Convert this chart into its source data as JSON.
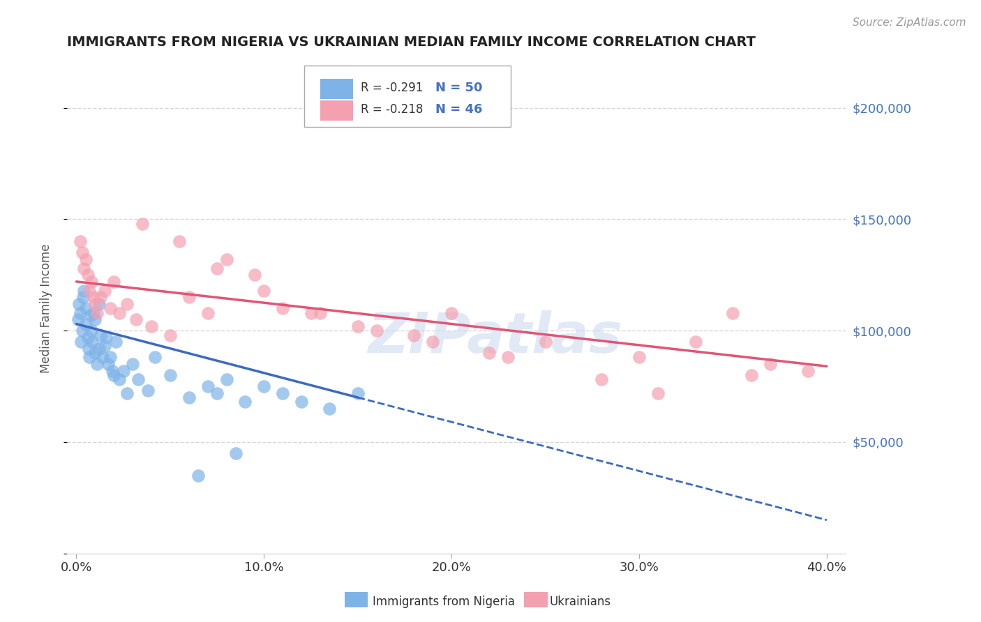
{
  "title": "IMMIGRANTS FROM NIGERIA VS UKRAINIAN MEDIAN FAMILY INCOME CORRELATION CHART",
  "source_text": "Source: ZipAtlas.com",
  "ylabel": "Median Family Income",
  "xlabel_ticks": [
    "0.0%",
    "10.0%",
    "20.0%",
    "30.0%",
    "40.0%"
  ],
  "xlabel_vals": [
    0.0,
    10.0,
    20.0,
    30.0,
    40.0
  ],
  "ylim": [
    0,
    220000
  ],
  "xlim": [
    -0.5,
    41
  ],
  "ytick_vals": [
    0,
    50000,
    100000,
    150000,
    200000
  ],
  "ytick_labels": [
    "",
    "$50,000",
    "$100,000",
    "$150,000",
    "$200,000"
  ],
  "nigeria_R": -0.291,
  "nigeria_N": 50,
  "ukraine_R": -0.218,
  "ukraine_N": 46,
  "nigeria_color": "#7EB3E8",
  "ukraine_color": "#F4A0B0",
  "nigeria_line_color": "#3B6BBF",
  "ukraine_line_color": "#E05575",
  "watermark": "ZIPatlas",
  "background_color": "#FFFFFF",
  "grid_color": "#CCCCCC",
  "title_color": "#222222",
  "axis_label_color": "#555555",
  "right_tick_color": "#4472C4",
  "nigeria_scatter_x": [
    0.1,
    0.15,
    0.2,
    0.25,
    0.3,
    0.35,
    0.4,
    0.5,
    0.5,
    0.6,
    0.65,
    0.7,
    0.75,
    0.8,
    0.85,
    0.9,
    1.0,
    1.0,
    1.1,
    1.2,
    1.2,
    1.3,
    1.4,
    1.5,
    1.6,
    1.7,
    1.8,
    1.9,
    2.0,
    2.1,
    2.3,
    2.5,
    2.7,
    3.0,
    3.3,
    3.8,
    4.2,
    5.0,
    6.0,
    7.0,
    7.5,
    8.0,
    9.0,
    10.0,
    11.0,
    12.0,
    13.5,
    15.0,
    8.5,
    6.5
  ],
  "nigeria_scatter_y": [
    105000,
    112000,
    108000,
    95000,
    100000,
    115000,
    118000,
    103000,
    110000,
    97000,
    92000,
    88000,
    107000,
    100000,
    95000,
    108000,
    90000,
    105000,
    85000,
    92000,
    112000,
    98000,
    88000,
    93000,
    97000,
    85000,
    88000,
    82000,
    80000,
    95000,
    78000,
    82000,
    72000,
    85000,
    78000,
    73000,
    88000,
    80000,
    70000,
    75000,
    72000,
    78000,
    68000,
    75000,
    72000,
    68000,
    65000,
    72000,
    45000,
    35000
  ],
  "ukraine_scatter_x": [
    0.2,
    0.3,
    0.4,
    0.5,
    0.6,
    0.7,
    0.8,
    0.9,
    1.0,
    1.1,
    1.3,
    1.5,
    1.8,
    2.0,
    2.3,
    2.7,
    3.2,
    4.0,
    5.0,
    6.0,
    7.0,
    8.0,
    9.5,
    11.0,
    13.0,
    15.0,
    18.0,
    20.0,
    22.0,
    25.0,
    28.0,
    30.0,
    33.0,
    35.0,
    37.0,
    39.0,
    3.5,
    5.5,
    7.5,
    10.0,
    12.5,
    16.0,
    19.0,
    23.0,
    31.0,
    36.0
  ],
  "ukraine_scatter_y": [
    140000,
    135000,
    128000,
    132000,
    125000,
    118000,
    122000,
    115000,
    112000,
    108000,
    115000,
    118000,
    110000,
    122000,
    108000,
    112000,
    105000,
    102000,
    98000,
    115000,
    108000,
    132000,
    125000,
    110000,
    108000,
    102000,
    98000,
    108000,
    90000,
    95000,
    78000,
    88000,
    95000,
    108000,
    85000,
    82000,
    148000,
    140000,
    128000,
    118000,
    108000,
    100000,
    95000,
    88000,
    72000,
    80000
  ]
}
